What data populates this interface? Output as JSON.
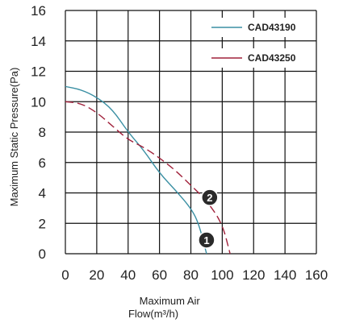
{
  "chart_data": {
    "type": "line",
    "title": "",
    "xlabel": "Maximum Air Flow(m³/h)",
    "ylabel": "Maximum Static Pressure(Pa)",
    "xlim": [
      0,
      160
    ],
    "ylim": [
      0,
      16
    ],
    "xticks": [
      0,
      20,
      40,
      60,
      80,
      100,
      120,
      140,
      160
    ],
    "yticks": [
      0,
      2,
      4,
      6,
      8,
      10,
      12,
      14,
      16
    ],
    "grid": true,
    "legend_position": "top-right",
    "series": [
      {
        "name": "CAD43190",
        "color": "#3a8fa3",
        "dash": "solid",
        "x": [
          0,
          10,
          20,
          30,
          40,
          50,
          60,
          70,
          80,
          85,
          90
        ],
        "y": [
          11.0,
          10.8,
          10.3,
          9.5,
          8.0,
          6.8,
          5.3,
          4.2,
          3.0,
          2.0,
          0
        ]
      },
      {
        "name": "CAD43250",
        "color": "#a0203a",
        "dash": "dashed",
        "x": [
          0,
          10,
          20,
          30,
          40,
          50,
          60,
          70,
          80,
          90,
          100,
          105
        ],
        "y": [
          10.0,
          9.9,
          9.3,
          8.4,
          7.5,
          7.0,
          6.3,
          5.5,
          4.5,
          3.5,
          2.0,
          0
        ]
      }
    ],
    "markers": [
      {
        "label": "1",
        "x": 90,
        "y": 0.9
      },
      {
        "label": "2",
        "x": 92,
        "y": 3.7
      }
    ]
  }
}
